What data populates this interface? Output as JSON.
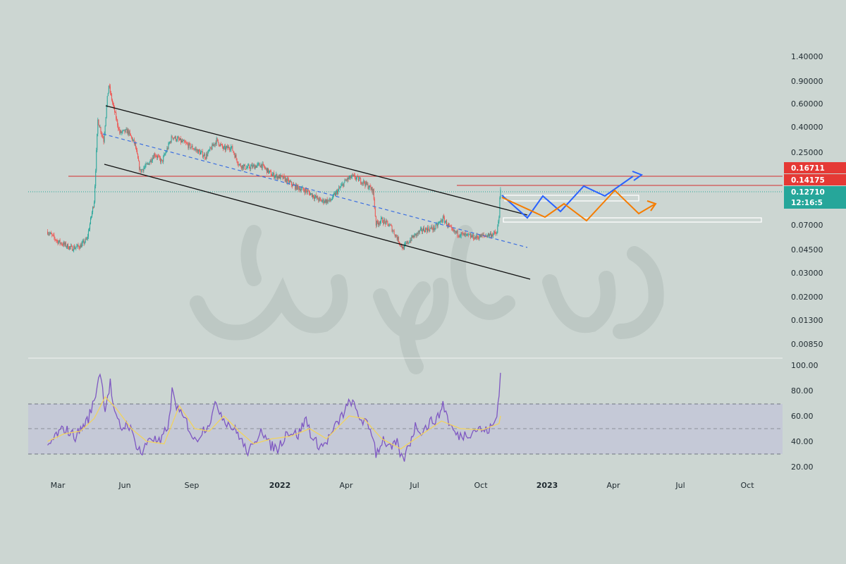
{
  "colors": {
    "background": "#ccd6d2",
    "candle_up": "#26a69a",
    "candle_down": "#ef5350",
    "resistance_line": "#d32f2f",
    "price_tag_red": "#e53935",
    "price_tag_teal": "#26a69a",
    "channel_line": "#111111",
    "midline_dashed": "#3b6fe0",
    "scenario_blue": "#2962ff",
    "scenario_orange": "#f57c00",
    "rsi_line": "#7e57c2",
    "rsi_ma_line": "#f1d35e",
    "rsi_band": "#c3c7d8"
  },
  "chart_data": [
    {
      "type": "candlestick",
      "title": "",
      "scale": "log",
      "y_ticks": [
        "1.40000",
        "0.90000",
        "0.60000",
        "0.40000",
        "0.25000",
        "0.07000",
        "0.04500",
        "0.03000",
        "0.02000",
        "0.01300",
        "0.00850"
      ],
      "x_ticks": [
        "Mar",
        "Jun",
        "Sep",
        "2022",
        "Apr",
        "Jul",
        "Oct",
        "2023",
        "Apr",
        "Jul",
        "Oct"
      ],
      "price_tags": [
        {
          "label": "0.16711",
          "color": "#e53935"
        },
        {
          "label": "0.14175",
          "color": "#e53935"
        },
        {
          "label": "0.12710",
          "color": "#26a69a"
        },
        {
          "label": "12:16:5",
          "color": "#26a69a"
        }
      ],
      "key_levels": [
        0.16711,
        0.14175
      ],
      "last_price": 0.1271,
      "price_path": [
        [
          "2021-02-15",
          0.066
        ],
        [
          "2021-03-01",
          0.056
        ],
        [
          "2021-03-20",
          0.05
        ],
        [
          "2021-04-01",
          0.052
        ],
        [
          "2021-04-10",
          0.058
        ],
        [
          "2021-04-20",
          0.11
        ],
        [
          "2021-04-25",
          0.42
        ],
        [
          "2021-05-03",
          0.3
        ],
        [
          "2021-05-08",
          0.6
        ],
        [
          "2021-05-10",
          0.75
        ],
        [
          "2021-05-15",
          0.56
        ],
        [
          "2021-05-25",
          0.34
        ],
        [
          "2021-06-05",
          0.35
        ],
        [
          "2021-06-15",
          0.28
        ],
        [
          "2021-06-22",
          0.18
        ],
        [
          "2021-07-02",
          0.2
        ],
        [
          "2021-07-12",
          0.24
        ],
        [
          "2021-07-22",
          0.21
        ],
        [
          "2021-08-05",
          0.32
        ],
        [
          "2021-08-20",
          0.29
        ],
        [
          "2021-09-05",
          0.26
        ],
        [
          "2021-09-20",
          0.23
        ],
        [
          "2021-10-05",
          0.3
        ],
        [
          "2021-10-15",
          0.26
        ],
        [
          "2021-10-25",
          0.27
        ],
        [
          "2021-11-05",
          0.2
        ],
        [
          "2021-11-15",
          0.19
        ],
        [
          "2021-12-05",
          0.2
        ],
        [
          "2021-12-20",
          0.17
        ],
        [
          "2022-01-05",
          0.16
        ],
        [
          "2022-01-20",
          0.14
        ],
        [
          "2022-02-05",
          0.13
        ],
        [
          "2022-02-25",
          0.11
        ],
        [
          "2022-03-10",
          0.11
        ],
        [
          "2022-04-01",
          0.155
        ],
        [
          "2022-04-10",
          0.165
        ],
        [
          "2022-04-25",
          0.15
        ],
        [
          "2022-05-08",
          0.13
        ],
        [
          "2022-05-12",
          0.075
        ],
        [
          "2022-05-20",
          0.08
        ],
        [
          "2022-06-01",
          0.072
        ],
        [
          "2022-06-18",
          0.05
        ],
        [
          "2022-07-01",
          0.06
        ],
        [
          "2022-07-15",
          0.068
        ],
        [
          "2022-08-01",
          0.07
        ],
        [
          "2022-08-12",
          0.082
        ],
        [
          "2022-08-25",
          0.066
        ],
        [
          "2022-09-10",
          0.062
        ],
        [
          "2022-09-25",
          0.06
        ],
        [
          "2022-10-10",
          0.062
        ],
        [
          "2022-10-25",
          0.064
        ],
        [
          "2022-10-28",
          0.085
        ],
        [
          "2022-10-29",
          0.12
        ],
        [
          "2022-10-30",
          0.127
        ]
      ]
    },
    {
      "type": "line",
      "title": "",
      "y_ticks": [
        "100.00",
        "80.00",
        "60.00",
        "40.00",
        "20.00"
      ],
      "ylim": [
        20,
        100
      ],
      "band": [
        30,
        70
      ],
      "midline": 50,
      "series": [
        {
          "color": "#7e57c2",
          "points": [
            [
              "2021-02-15",
              34
            ],
            [
              "2021-02-25",
              44
            ],
            [
              "2021-03-10",
              50
            ],
            [
              "2021-03-25",
              44
            ],
            [
              "2021-04-05",
              52
            ],
            [
              "2021-04-12",
              58
            ],
            [
              "2021-04-20",
              72
            ],
            [
              "2021-04-28",
              96
            ],
            [
              "2021-05-05",
              66
            ],
            [
              "2021-05-12",
              86
            ],
            [
              "2021-05-18",
              60
            ],
            [
              "2021-05-28",
              50
            ],
            [
              "2021-06-05",
              55
            ],
            [
              "2021-06-15",
              40
            ],
            [
              "2021-06-25",
              30
            ],
            [
              "2021-07-05",
              44
            ],
            [
              "2021-07-20",
              38
            ],
            [
              "2021-08-01",
              56
            ],
            [
              "2021-08-05",
              79
            ],
            [
              "2021-08-15",
              62
            ],
            [
              "2021-08-25",
              55
            ],
            [
              "2021-09-05",
              40
            ],
            [
              "2021-09-15",
              48
            ],
            [
              "2021-09-25",
              55
            ],
            [
              "2021-10-05",
              70
            ],
            [
              "2021-10-15",
              58
            ],
            [
              "2021-10-25",
              52
            ],
            [
              "2021-11-05",
              45
            ],
            [
              "2021-11-15",
              32
            ],
            [
              "2021-11-25",
              35
            ],
            [
              "2021-12-05",
              52
            ],
            [
              "2021-12-15",
              38
            ],
            [
              "2021-12-28",
              34
            ],
            [
              "2022-01-10",
              48
            ],
            [
              "2022-01-25",
              45
            ],
            [
              "2022-02-05",
              58
            ],
            [
              "2022-02-15",
              40
            ],
            [
              "2022-02-28",
              36
            ],
            [
              "2022-03-10",
              44
            ],
            [
              "2022-03-20",
              54
            ],
            [
              "2022-04-01",
              66
            ],
            [
              "2022-04-08",
              72
            ],
            [
              "2022-04-18",
              60
            ],
            [
              "2022-04-28",
              54
            ],
            [
              "2022-05-08",
              45
            ],
            [
              "2022-05-12",
              30
            ],
            [
              "2022-05-22",
              42
            ],
            [
              "2022-06-01",
              34
            ],
            [
              "2022-06-10",
              38
            ],
            [
              "2022-06-18",
              24
            ],
            [
              "2022-06-28",
              40
            ],
            [
              "2022-07-05",
              52
            ],
            [
              "2022-07-15",
              48
            ],
            [
              "2022-07-25",
              55
            ],
            [
              "2022-08-05",
              58
            ],
            [
              "2022-08-12",
              70
            ],
            [
              "2022-08-22",
              52
            ],
            [
              "2022-09-01",
              44
            ],
            [
              "2022-09-15",
              46
            ],
            [
              "2022-09-28",
              50
            ],
            [
              "2022-10-10",
              48
            ],
            [
              "2022-10-20",
              52
            ],
            [
              "2022-10-25",
              60
            ],
            [
              "2022-10-28",
              80
            ],
            [
              "2022-10-30",
              94
            ]
          ]
        },
        {
          "color": "#f1d35e",
          "points": [
            [
              "2021-02-15",
              40
            ],
            [
              "2021-03-10",
              46
            ],
            [
              "2021-04-01",
              48
            ],
            [
              "2021-04-20",
              58
            ],
            [
              "2021-05-05",
              75
            ],
            [
              "2021-05-20",
              66
            ],
            [
              "2021-06-10",
              50
            ],
            [
              "2021-07-01",
              40
            ],
            [
              "2021-07-25",
              38
            ],
            [
              "2021-08-15",
              68
            ],
            [
              "2021-09-05",
              50
            ],
            [
              "2021-09-25",
              48
            ],
            [
              "2021-10-15",
              60
            ],
            [
              "2021-11-05",
              48
            ],
            [
              "2021-11-25",
              38
            ],
            [
              "2021-12-20",
              42
            ],
            [
              "2022-01-15",
              44
            ],
            [
              "2022-02-10",
              50
            ],
            [
              "2022-03-05",
              42
            ],
            [
              "2022-04-05",
              60
            ],
            [
              "2022-04-25",
              58
            ],
            [
              "2022-05-20",
              42
            ],
            [
              "2022-06-15",
              34
            ],
            [
              "2022-07-10",
              44
            ],
            [
              "2022-08-10",
              56
            ],
            [
              "2022-09-05",
              50
            ],
            [
              "2022-10-05",
              49
            ],
            [
              "2022-10-28",
              54
            ],
            [
              "2022-10-30",
              60
            ]
          ]
        }
      ]
    }
  ]
}
